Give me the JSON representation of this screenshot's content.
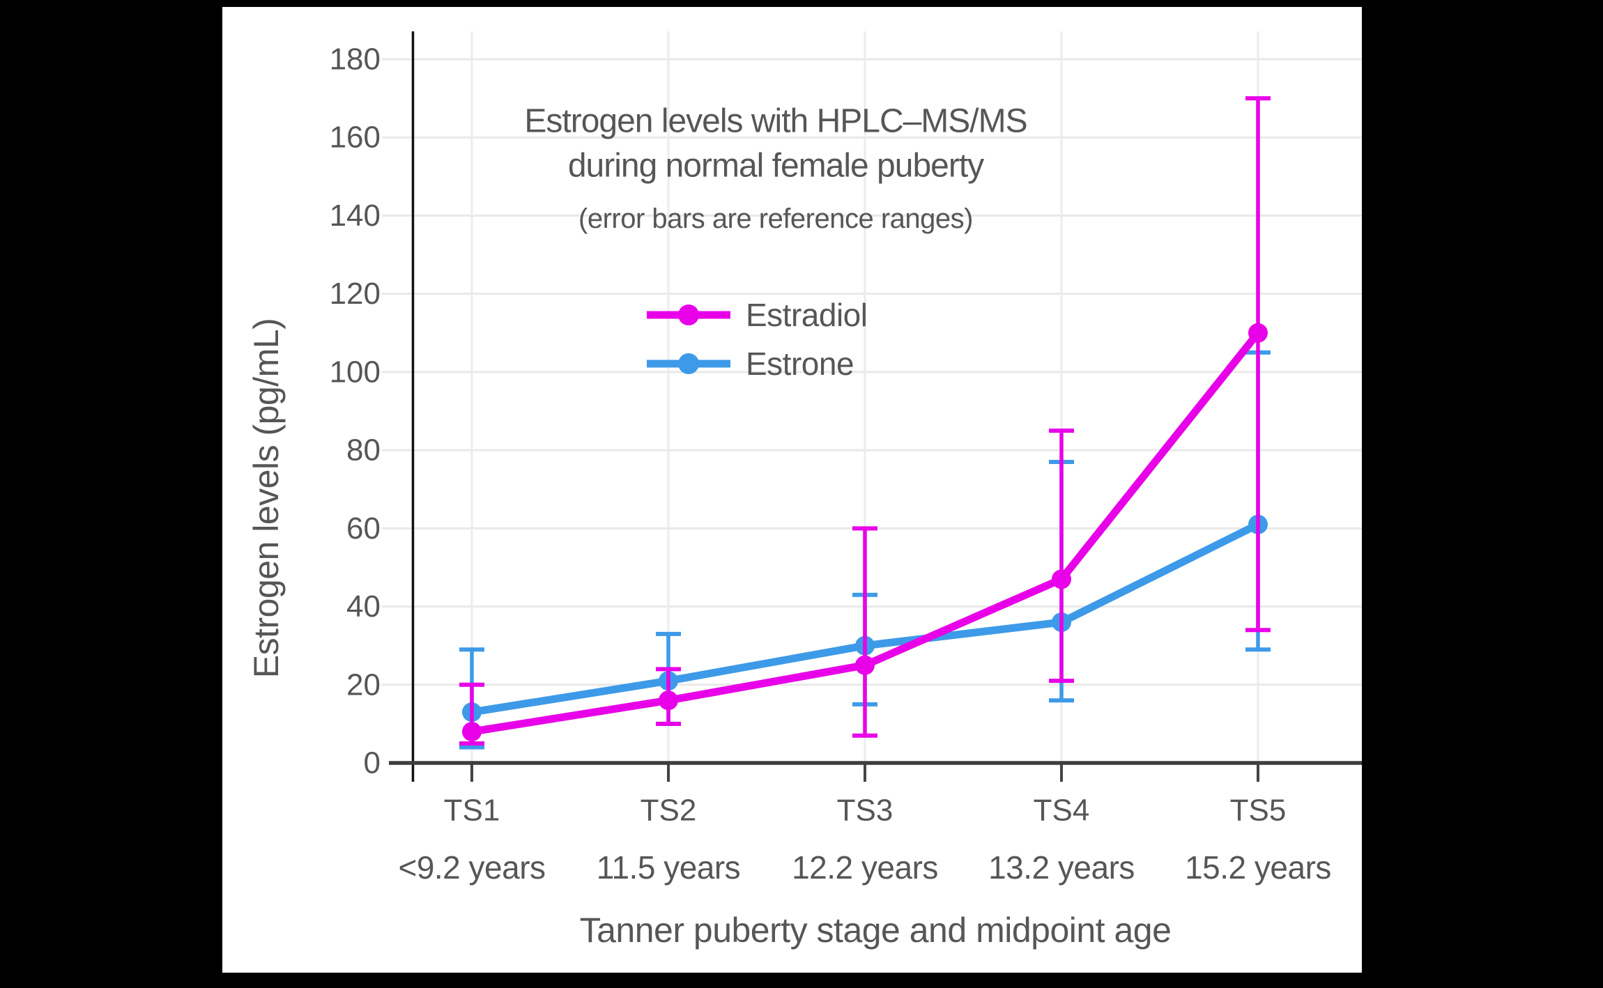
{
  "chart_data": {
    "type": "line",
    "title": "Estrogen levels with HPLC–MS/MS",
    "title_line2": "during normal female puberty",
    "subtitle": "(error bars are reference ranges)",
    "xlabel": "Tanner puberty stage and midpoint age",
    "ylabel": "Estrogen levels (pg/mL)",
    "categories": [
      "TS1",
      "TS2",
      "TS3",
      "TS4",
      "TS5"
    ],
    "category_sublabels": [
      "<9.2 years",
      "11.5 years",
      "12.2 years",
      "13.2 years",
      "15.2 years"
    ],
    "y_ticks": [
      0,
      20,
      40,
      60,
      80,
      100,
      120,
      140,
      160,
      180
    ],
    "ylim": [
      0,
      187
    ],
    "grid": true,
    "legend_position": "inside-upper-left",
    "error_bar_meaning": "reference ranges",
    "series": [
      {
        "name": "Estradiol",
        "color": "#E800E8",
        "values": [
          8,
          16,
          25,
          47,
          110
        ],
        "error_low": [
          5,
          10,
          7,
          21,
          34
        ],
        "error_high": [
          20,
          24,
          60,
          85,
          170
        ]
      },
      {
        "name": "Estrone",
        "color": "#3D9AE8",
        "values": [
          13,
          21,
          30,
          36,
          61
        ],
        "error_low": [
          4,
          10,
          15,
          16,
          29
        ],
        "error_high": [
          29,
          33,
          43,
          77,
          105
        ]
      }
    ],
    "colors": {
      "background": "#000000",
      "plot_background": "#ffffff",
      "grid": "#e9e9e9",
      "grid_vertical": "#ececec",
      "axis_line": "#111111",
      "baseline": "#3d3d3d",
      "tick": "#444444",
      "text": "#565656"
    }
  }
}
